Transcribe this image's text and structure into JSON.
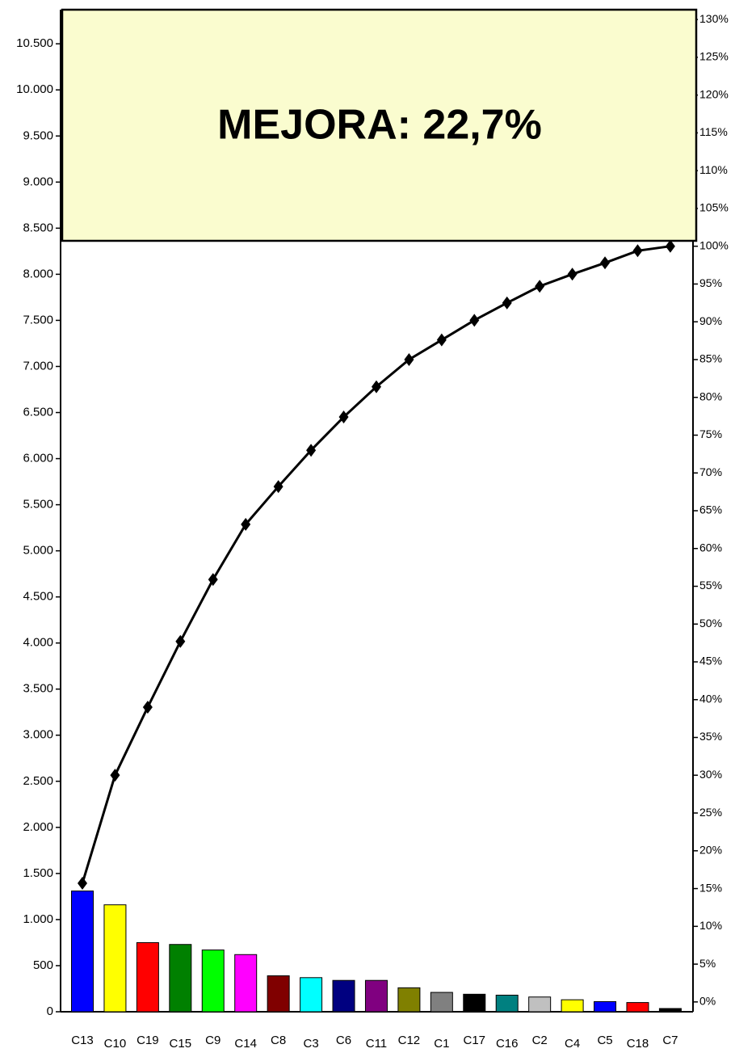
{
  "chart_data": {
    "type": "pareto",
    "annotation": {
      "text": "MEJORA: 22,7%",
      "color": "#ff0000",
      "background": "#fafccf"
    },
    "categories": [
      "C13",
      "C10",
      "C19",
      "C15",
      "C9",
      "C14",
      "C8",
      "C3",
      "C6",
      "C11",
      "C12",
      "C1",
      "C17",
      "C16",
      "C2",
      "C4",
      "C5",
      "C18",
      "C7"
    ],
    "series": [
      {
        "type": "bar",
        "axis": "y",
        "colors": [
          "#0000ff",
          "#ffff00",
          "#ff0000",
          "#008000",
          "#00ff00",
          "#ff00ff",
          "#800000",
          "#00ffff",
          "#000080",
          "#800080",
          "#808000",
          "#808080",
          "#000000",
          "#008080",
          "#c0c0c0",
          "#ffff00",
          "#0000ff",
          "#ff0000",
          "#000000"
        ],
        "values": [
          1310,
          1160,
          750,
          730,
          670,
          620,
          390,
          370,
          340,
          340,
          260,
          210,
          190,
          180,
          160,
          130,
          110,
          100,
          35
        ]
      },
      {
        "type": "line",
        "axis": "y2",
        "color": "#000000",
        "values": [
          15.7,
          30.0,
          39.0,
          47.7,
          55.9,
          63.2,
          68.2,
          73.0,
          77.4,
          81.4,
          85.0,
          87.6,
          90.2,
          92.5,
          94.7,
          96.3,
          97.8,
          99.4,
          100
        ]
      }
    ],
    "ylim": [
      0,
      10870
    ],
    "yticks": [
      0,
      500,
      {
        "value": 1000,
        "label": "1.000"
      },
      {
        "value": 1500,
        "label": "1.500"
      },
      {
        "value": 2000,
        "label": "2.000"
      },
      {
        "value": 2500,
        "label": "2.500"
      },
      {
        "value": 3000,
        "label": "3.000"
      },
      {
        "value": 3500,
        "label": "3.500"
      },
      {
        "value": 4000,
        "label": "4.000"
      },
      {
        "value": 4500,
        "label": "4.500"
      },
      {
        "value": 5000,
        "label": "5.000"
      },
      {
        "value": 5500,
        "label": "5.500"
      },
      {
        "value": 6000,
        "label": "6.000"
      },
      {
        "value": 6500,
        "label": "6.500"
      },
      {
        "value": 7000,
        "label": "7.000"
      },
      {
        "value": 7500,
        "label": "7.500"
      },
      {
        "value": 8000,
        "label": "8.000"
      },
      {
        "value": 8500,
        "label": "8.500"
      },
      {
        "value": 9000,
        "label": "9.000"
      },
      {
        "value": 9500,
        "label": "9.500"
      },
      {
        "value": 10000,
        "label": "10.000"
      },
      {
        "value": 10500,
        "label": "10.500"
      }
    ],
    "y2lim": [
      -1.3,
      131.3
    ],
    "y2ticks": [
      {
        "value": 0,
        "label": "0%"
      },
      {
        "value": 5,
        "label": "5%"
      },
      {
        "value": 10,
        "label": "10%"
      },
      {
        "value": 15,
        "label": "15%"
      },
      {
        "value": 20,
        "label": "20%"
      },
      {
        "value": 25,
        "label": "25%"
      },
      {
        "value": 30,
        "label": "30%"
      },
      {
        "value": 35,
        "label": "35%"
      },
      {
        "value": 40,
        "label": "40%"
      },
      {
        "value": 45,
        "label": "45%"
      },
      {
        "value": 50,
        "label": "50%"
      },
      {
        "value": 55,
        "label": "55%"
      },
      {
        "value": 60,
        "label": "60%"
      },
      {
        "value": 65,
        "label": "65%"
      },
      {
        "value": 70,
        "label": "70%"
      },
      {
        "value": 75,
        "label": "75%"
      },
      {
        "value": 80,
        "label": "80%"
      },
      {
        "value": 85,
        "label": "85%"
      },
      {
        "value": 90,
        "label": "90%"
      },
      {
        "value": 95,
        "label": "95%"
      },
      {
        "value": 100,
        "label": "100%"
      },
      {
        "value": 105,
        "label": "105%"
      },
      {
        "value": 110,
        "label": "110%"
      },
      {
        "value": 115,
        "label": "115%"
      },
      {
        "value": 120,
        "label": "120%"
      },
      {
        "value": 125,
        "label": "125%"
      },
      {
        "value": 130,
        "label": "130%"
      }
    ]
  }
}
